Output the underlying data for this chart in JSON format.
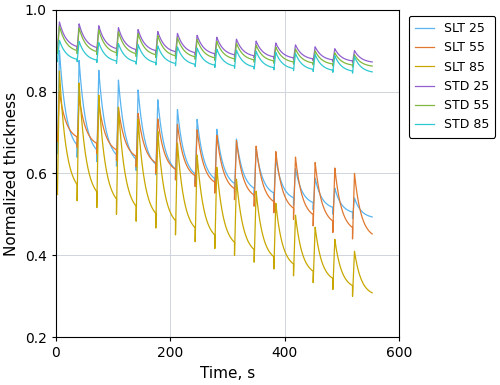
{
  "xlabel": "Time, s",
  "ylabel": "Normalized thickness",
  "xlim": [
    0,
    600
  ],
  "ylim": [
    0.2,
    1.0
  ],
  "yticks": [
    0.2,
    0.4,
    0.6,
    0.8,
    1.0
  ],
  "xticks": [
    0,
    200,
    400,
    600
  ],
  "grid_color": "#c8cdd8",
  "legend_labels": [
    "SLT 25",
    "SLT 55",
    "SLT 85",
    "STD 25",
    "STD 55",
    "STD 85"
  ],
  "colors": [
    "#5ab4f0",
    "#e07830",
    "#c8a800",
    "#9060d0",
    "#80b840",
    "#30c8d0"
  ],
  "n_cycles": 16,
  "total_time": 550
}
